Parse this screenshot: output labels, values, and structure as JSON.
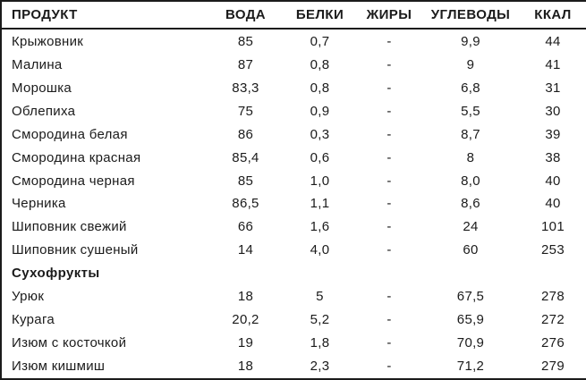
{
  "colors": {
    "text": "#1b1b1b",
    "border": "#1b1b1b",
    "background": "#ffffff"
  },
  "table": {
    "columns": [
      {
        "key": "product",
        "label": "ПРОДУКТ"
      },
      {
        "key": "water",
        "label": "ВОДА"
      },
      {
        "key": "protein",
        "label": "БЕЛКИ"
      },
      {
        "key": "fat",
        "label": "ЖИРЫ"
      },
      {
        "key": "carbs",
        "label": "УГЛЕВОДЫ"
      },
      {
        "key": "kcal",
        "label": "ККАЛ"
      }
    ],
    "rows": [
      {
        "type": "data",
        "product": "Крыжовник",
        "water": "85",
        "protein": "0,7",
        "fat": "-",
        "carbs": "9,9",
        "kcal": "44"
      },
      {
        "type": "data",
        "product": "Малина",
        "water": "87",
        "protein": "0,8",
        "fat": "-",
        "carbs": "9",
        "kcal": "41"
      },
      {
        "type": "data",
        "product": "Морошка",
        "water": "83,3",
        "protein": "0,8",
        "fat": "-",
        "carbs": "6,8",
        "kcal": "31"
      },
      {
        "type": "data",
        "product": "Облепиха",
        "water": "75",
        "protein": "0,9",
        "fat": "-",
        "carbs": "5,5",
        "kcal": "30"
      },
      {
        "type": "data",
        "product": "Смородина белая",
        "water": "86",
        "protein": "0,3",
        "fat": "-",
        "carbs": "8,7",
        "kcal": "39"
      },
      {
        "type": "data",
        "product": "Смородина красная",
        "water": "85,4",
        "protein": "0,6",
        "fat": "-",
        "carbs": "8",
        "kcal": "38"
      },
      {
        "type": "data",
        "product": "Смородина черная",
        "water": "85",
        "protein": "1,0",
        "fat": "-",
        "carbs": "8,0",
        "kcal": "40"
      },
      {
        "type": "data",
        "product": "Черника",
        "water": "86,5",
        "protein": "1,1",
        "fat": "-",
        "carbs": "8,6",
        "kcal": "40"
      },
      {
        "type": "data",
        "product": "Шиповник свежий",
        "water": "66",
        "protein": "1,6",
        "fat": "-",
        "carbs": "24",
        "kcal": "101"
      },
      {
        "type": "data",
        "product": "Шиповник сушеный",
        "water": "14",
        "protein": "4,0",
        "fat": "-",
        "carbs": "60",
        "kcal": "253"
      },
      {
        "type": "spacer",
        "product": "",
        "water": "",
        "protein": "",
        "fat": "",
        "carbs": "",
        "kcal": ""
      },
      {
        "type": "section",
        "product": "Сухофрукты",
        "water": "",
        "protein": "",
        "fat": "",
        "carbs": "",
        "kcal": ""
      },
      {
        "type": "data",
        "product": "Урюк",
        "water": "18",
        "protein": "5",
        "fat": "-",
        "carbs": "67,5",
        "kcal": "278"
      },
      {
        "type": "data",
        "product": "Курага",
        "water": "20,2",
        "protein": "5,2",
        "fat": "-",
        "carbs": "65,9",
        "kcal": "272"
      },
      {
        "type": "data",
        "product": "Изюм с косточкой",
        "water": "19",
        "protein": "1,8",
        "fat": "-",
        "carbs": "70,9",
        "kcal": "276"
      },
      {
        "type": "data",
        "product": "Изюм кишмиш",
        "water": "18",
        "protein": "2,3",
        "fat": "-",
        "carbs": "71,2",
        "kcal": "279"
      }
    ]
  },
  "chart_data": {
    "type": "table",
    "title": "",
    "columns": [
      "ПРОДУКТ",
      "ВОДА",
      "БЕЛКИ",
      "ЖИРЫ",
      "УГЛЕВОДЫ",
      "ККАЛ"
    ],
    "sections": [
      {
        "name": "",
        "rows": [
          [
            "Крыжовник",
            "85",
            "0,7",
            "-",
            "9,9",
            "44"
          ],
          [
            "Малина",
            "87",
            "0,8",
            "-",
            "9",
            "41"
          ],
          [
            "Морошка",
            "83,3",
            "0,8",
            "-",
            "6,8",
            "31"
          ],
          [
            "Облепиха",
            "75",
            "0,9",
            "-",
            "5,5",
            "30"
          ],
          [
            "Смородина белая",
            "86",
            "0,3",
            "-",
            "8,7",
            "39"
          ],
          [
            "Смородина красная",
            "85,4",
            "0,6",
            "-",
            "8",
            "38"
          ],
          [
            "Смородина черная",
            "85",
            "1,0",
            "-",
            "8,0",
            "40"
          ],
          [
            "Черника",
            "86,5",
            "1,1",
            "-",
            "8,6",
            "40"
          ],
          [
            "Шиповник свежий",
            "66",
            "1,6",
            "-",
            "24",
            "101"
          ],
          [
            "Шиповник сушеный",
            "14",
            "4,0",
            "-",
            "60",
            "253"
          ]
        ]
      },
      {
        "name": "Сухофрукты",
        "rows": [
          [
            "Урюк",
            "18",
            "5",
            "-",
            "67,5",
            "278"
          ],
          [
            "Курага",
            "20,2",
            "5,2",
            "-",
            "65,9",
            "272"
          ],
          [
            "Изюм с косточкой",
            "19",
            "1,8",
            "-",
            "70,9",
            "276"
          ],
          [
            "Изюм кишмиш",
            "18",
            "2,3",
            "-",
            "71,2",
            "279"
          ]
        ]
      }
    ]
  }
}
